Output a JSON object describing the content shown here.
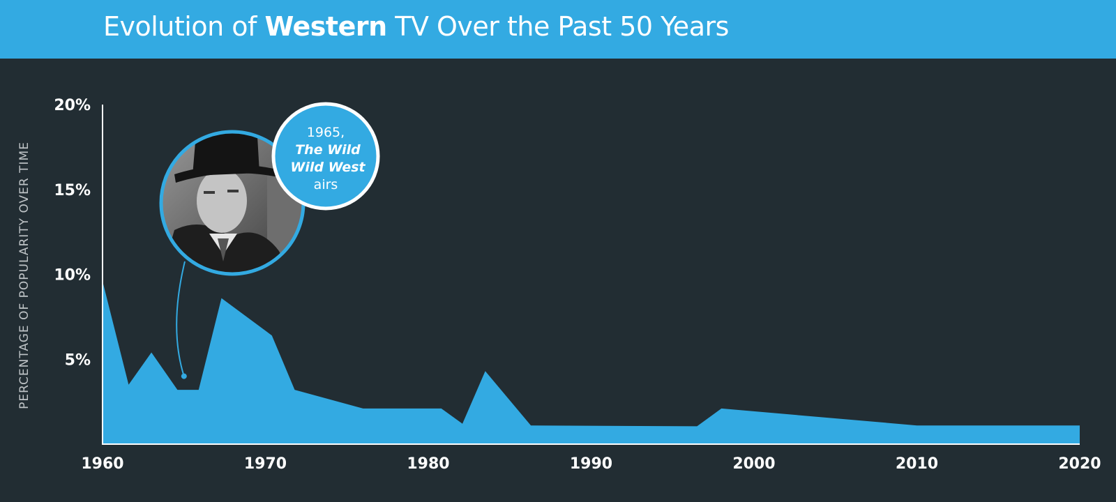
{
  "header": {
    "title_pre": "Evolution of ",
    "title_bold": "Western",
    "title_post": " TV Over the Past 50 Years"
  },
  "colors": {
    "header_bg": "#33aae2",
    "background": "#222d33",
    "area": "#33aae2",
    "text": "#ffffff"
  },
  "chart_data": {
    "type": "area",
    "title": "Evolution of Western TV Over the Past 50 Years",
    "ylabel": "PERCENTAGE OF POPULARITY OVER TIME",
    "xlabel": "",
    "xlim": [
      1960,
      2020
    ],
    "ylim": [
      0,
      20
    ],
    "x_ticks": [
      "1960",
      "1970",
      "1980",
      "1990",
      "2000",
      "2010",
      "2020"
    ],
    "y_ticks": [
      "5%",
      "10%",
      "15%",
      "20%"
    ],
    "grid": false,
    "legend": "none",
    "x": [
      1960,
      1961.6,
      1963,
      1964.6,
      1965.9,
      1967.3,
      1970.4,
      1971.8,
      1976,
      1980.8,
      1982.1,
      1983.5,
      1986.3,
      1996.5,
      1998,
      2010,
      2020
    ],
    "values": [
      9.6,
      3.5,
      5.4,
      3.2,
      3.2,
      8.6,
      6.4,
      3.2,
      2.1,
      2.1,
      1.2,
      4.3,
      1.1,
      1.05,
      2.1,
      1.1,
      1.1
    ],
    "annotation": {
      "x": 1965,
      "y": 4,
      "line1": "1965,",
      "line2": "The Wild",
      "line3": "Wild West",
      "line4": "airs",
      "image": "still of a man in a top hat"
    }
  }
}
